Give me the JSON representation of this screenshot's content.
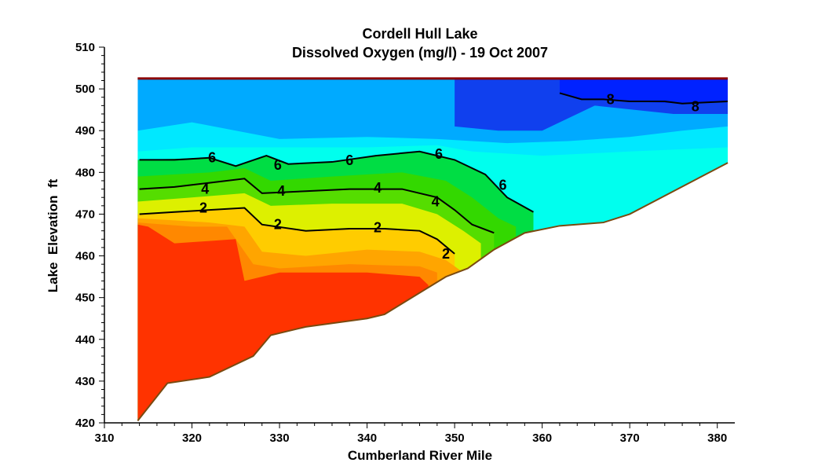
{
  "chart_data": {
    "type": "contour",
    "title": "Cordell Hull Lake",
    "subtitle": "Dissolved Oxygen (mg/l)  -  19 Oct 2007",
    "xlabel": "Cumberland River Mile",
    "ylabel": "Lake  Elevation  ft",
    "xlim": [
      310,
      382
    ],
    "ylim": [
      420,
      510
    ],
    "x_ticks": [
      310,
      320,
      330,
      340,
      350,
      360,
      370,
      380
    ],
    "y_ticks": [
      420,
      430,
      440,
      450,
      460,
      470,
      480,
      490,
      500,
      510
    ],
    "surface_elevation": 502.5,
    "surface_color": "#8b0000",
    "bottom_color": "#7a4a10",
    "bottom_profile": [
      {
        "x": 313.8,
        "y": 420.5
      },
      {
        "x": 317.2,
        "y": 429.5
      },
      {
        "x": 322.0,
        "y": 431.0
      },
      {
        "x": 327.0,
        "y": 436.0
      },
      {
        "x": 329.0,
        "y": 441.0
      },
      {
        "x": 333.0,
        "y": 443.0
      },
      {
        "x": 340.0,
        "y": 445.0
      },
      {
        "x": 342.0,
        "y": 446.0
      },
      {
        "x": 349.0,
        "y": 455.0
      },
      {
        "x": 351.5,
        "y": 457.0
      },
      {
        "x": 354.5,
        "y": 461.5
      },
      {
        "x": 358.0,
        "y": 465.5
      },
      {
        "x": 362.0,
        "y": 467.2
      },
      {
        "x": 367.0,
        "y": 468.0
      },
      {
        "x": 370.0,
        "y": 470.0
      },
      {
        "x": 381.2,
        "y": 482.3
      }
    ],
    "contour_fill_scale": [
      {
        "level": 0,
        "color": "#ff3300"
      },
      {
        "level": 1,
        "color": "#ff8800"
      },
      {
        "level": 2,
        "color": "#ffcc00"
      },
      {
        "level": 3,
        "color": "#ddf000"
      },
      {
        "level": 4,
        "color": "#55dd00"
      },
      {
        "level": 5,
        "color": "#00dd44"
      },
      {
        "level": 6,
        "color": "#00ffee"
      },
      {
        "level": 7,
        "color": "#00aaff"
      },
      {
        "level": 8,
        "color": "#0022ff"
      }
    ],
    "contour_lines": [
      {
        "level": "2",
        "points": [
          {
            "x": 314.0,
            "y": 470.0
          },
          {
            "x": 318.0,
            "y": 470.5
          },
          {
            "x": 322.0,
            "y": 471.0
          },
          {
            "x": 326.0,
            "y": 471.5
          },
          {
            "x": 328.0,
            "y": 467.5
          },
          {
            "x": 333.0,
            "y": 466.0
          },
          {
            "x": 338.0,
            "y": 466.5
          },
          {
            "x": 342.0,
            "y": 466.5
          },
          {
            "x": 346.0,
            "y": 466.0
          },
          {
            "x": 348.0,
            "y": 464.0
          },
          {
            "x": 350.0,
            "y": 460.5
          }
        ],
        "labels": [
          {
            "x": 321.3,
            "y": 471.5
          },
          {
            "x": 329.8,
            "y": 467.5
          },
          {
            "x": 341.2,
            "y": 466.8
          },
          {
            "x": 349.0,
            "y": 460.5
          }
        ]
      },
      {
        "level": "4",
        "points": [
          {
            "x": 314.0,
            "y": 476.0
          },
          {
            "x": 318.0,
            "y": 476.5
          },
          {
            "x": 322.0,
            "y": 477.5
          },
          {
            "x": 326.0,
            "y": 478.5
          },
          {
            "x": 328.0,
            "y": 475.0
          },
          {
            "x": 333.0,
            "y": 475.5
          },
          {
            "x": 338.0,
            "y": 476.0
          },
          {
            "x": 344.0,
            "y": 476.0
          },
          {
            "x": 348.0,
            "y": 474.0
          },
          {
            "x": 350.0,
            "y": 471.0
          },
          {
            "x": 352.0,
            "y": 467.5
          },
          {
            "x": 354.5,
            "y": 465.5
          }
        ],
        "labels": [
          {
            "x": 321.5,
            "y": 476.0
          },
          {
            "x": 330.2,
            "y": 475.5
          },
          {
            "x": 341.2,
            "y": 476.3
          },
          {
            "x": 347.8,
            "y": 473.0
          }
        ]
      },
      {
        "level": "6",
        "points": [
          {
            "x": 314.0,
            "y": 483.0
          },
          {
            "x": 318.0,
            "y": 483.0
          },
          {
            "x": 322.0,
            "y": 483.5
          },
          {
            "x": 325.0,
            "y": 481.5
          },
          {
            "x": 328.5,
            "y": 484.0
          },
          {
            "x": 331.0,
            "y": 482.0
          },
          {
            "x": 336.0,
            "y": 482.5
          },
          {
            "x": 341.0,
            "y": 484.0
          },
          {
            "x": 346.0,
            "y": 485.0
          },
          {
            "x": 350.0,
            "y": 483.0
          },
          {
            "x": 353.5,
            "y": 479.5
          },
          {
            "x": 356.0,
            "y": 474.0
          },
          {
            "x": 359.0,
            "y": 470.5
          }
        ],
        "labels": [
          {
            "x": 322.3,
            "y": 483.5
          },
          {
            "x": 329.8,
            "y": 481.8
          },
          {
            "x": 338.0,
            "y": 482.9
          },
          {
            "x": 348.2,
            "y": 484.4
          },
          {
            "x": 355.5,
            "y": 477.0
          }
        ]
      },
      {
        "level": "8",
        "points": [
          {
            "x": 362.0,
            "y": 499.0
          },
          {
            "x": 364.5,
            "y": 497.5
          },
          {
            "x": 367.0,
            "y": 497.5
          },
          {
            "x": 370.0,
            "y": 497.0
          },
          {
            "x": 374.0,
            "y": 497.0
          },
          {
            "x": 376.0,
            "y": 496.5
          },
          {
            "x": 381.2,
            "y": 497.0
          }
        ],
        "labels": [
          {
            "x": 367.8,
            "y": 497.5
          },
          {
            "x": 377.5,
            "y": 495.8
          }
        ]
      }
    ]
  }
}
